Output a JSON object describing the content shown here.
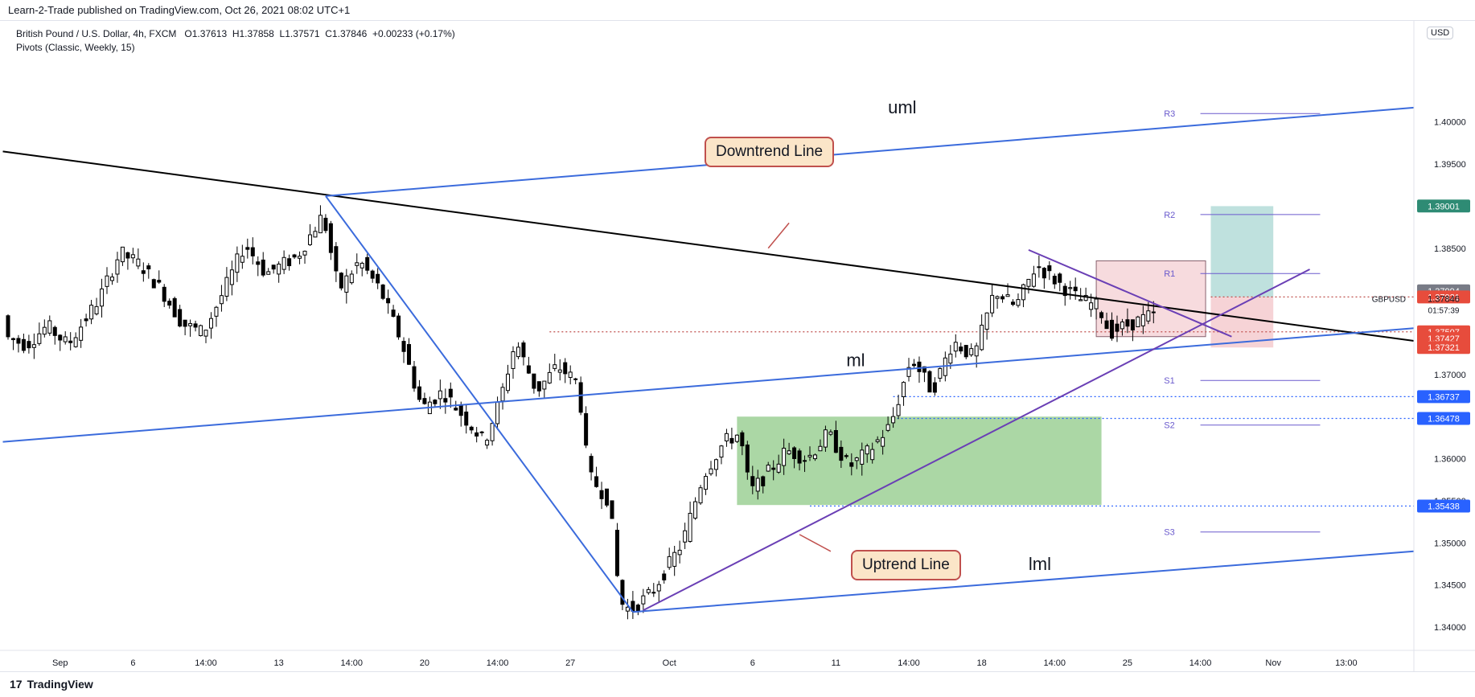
{
  "header": {
    "publisher": "Learn-2-Trade published on TradingView.com, Oct 26, 2021 08:02 UTC+1"
  },
  "legend": {
    "symbol": "British Pound / U.S. Dollar, 4h, FXCM",
    "open": "O1.37613",
    "high": "H1.37858",
    "low": "L1.37571",
    "close": "C1.37846",
    "change": "+0.00233 (+0.17%)",
    "indicator": "Pivots (Classic, Weekly, 15)"
  },
  "currency_button": "USD",
  "brand": {
    "logo": "17",
    "name": "TradingView"
  },
  "chart_data": {
    "type": "candlestick",
    "symbol": "GBPUSD",
    "timeframe": "4h",
    "ylim": [
      1.338,
      1.412
    ],
    "y_ticks": [
      "1.40000",
      "1.39500",
      "1.39000",
      "1.38500",
      "1.38000",
      "1.37500",
      "1.37000",
      "1.36500",
      "1.36000",
      "1.35500",
      "1.35000",
      "1.34500",
      "1.34000"
    ],
    "y_tick_values": [
      1.4,
      1.395,
      1.39,
      1.385,
      1.38,
      1.375,
      1.37,
      1.365,
      1.36,
      1.355,
      1.35,
      1.345,
      1.34
    ],
    "x_ticks": [
      {
        "label": "Sep",
        "bar": 10
      },
      {
        "label": "6",
        "bar": 24
      },
      {
        "label": "14:00",
        "bar": 38
      },
      {
        "label": "13",
        "bar": 52
      },
      {
        "label": "14:00",
        "bar": 66
      },
      {
        "label": "20",
        "bar": 80
      },
      {
        "label": "14:00",
        "bar": 94
      },
      {
        "label": "27",
        "bar": 108
      },
      {
        "label": "Oct",
        "bar": 127
      },
      {
        "label": "6",
        "bar": 143
      },
      {
        "label": "11",
        "bar": 159
      },
      {
        "label": "14:00",
        "bar": 173
      },
      {
        "label": "18",
        "bar": 187
      },
      {
        "label": "14:00",
        "bar": 201
      },
      {
        "label": "25",
        "bar": 215
      },
      {
        "label": "14:00",
        "bar": 229
      },
      {
        "label": "Nov",
        "bar": 243
      },
      {
        "label": "13:00",
        "bar": 257
      }
    ],
    "xlim": [
      0,
      270
    ],
    "waypoints": [
      [
        0,
        1.3745
      ],
      [
        4,
        1.3735
      ],
      [
        8,
        1.3758
      ],
      [
        12,
        1.3735
      ],
      [
        18,
        1.379
      ],
      [
        22,
        1.3845
      ],
      [
        26,
        1.383
      ],
      [
        30,
        1.38
      ],
      [
        34,
        1.376
      ],
      [
        38,
        1.375
      ],
      [
        42,
        1.38
      ],
      [
        46,
        1.3855
      ],
      [
        50,
        1.382
      ],
      [
        56,
        1.384
      ],
      [
        61,
        1.389
      ],
      [
        64,
        1.38
      ],
      [
        68,
        1.3835
      ],
      [
        72,
        1.38
      ],
      [
        76,
        1.374
      ],
      [
        80,
        1.366
      ],
      [
        84,
        1.368
      ],
      [
        88,
        1.365
      ],
      [
        92,
        1.362
      ],
      [
        95,
        1.367
      ],
      [
        98,
        1.374
      ],
      [
        102,
        1.368
      ],
      [
        106,
        1.371
      ],
      [
        110,
        1.369
      ],
      [
        112,
        1.358
      ],
      [
        116,
        1.355
      ],
      [
        118,
        1.343
      ],
      [
        120,
        1.342
      ],
      [
        124,
        1.344
      ],
      [
        128,
        1.348
      ],
      [
        130,
        1.35
      ],
      [
        134,
        1.358
      ],
      [
        138,
        1.362
      ],
      [
        141,
        1.363
      ],
      [
        143,
        1.356
      ],
      [
        146,
        1.358
      ],
      [
        150,
        1.361
      ],
      [
        154,
        1.36
      ],
      [
        158,
        1.363
      ],
      [
        162,
        1.359
      ],
      [
        166,
        1.361
      ],
      [
        170,
        1.364
      ],
      [
        174,
        1.372
      ],
      [
        178,
        1.368
      ],
      [
        182,
        1.374
      ],
      [
        186,
        1.372
      ],
      [
        190,
        1.38
      ],
      [
        194,
        1.378
      ],
      [
        198,
        1.383
      ],
      [
        202,
        1.381
      ],
      [
        206,
        1.379
      ],
      [
        210,
        1.378
      ],
      [
        212,
        1.375
      ],
      [
        216,
        1.376
      ],
      [
        220,
        1.377
      ]
    ],
    "price_labels": [
      {
        "price": 1.39001,
        "text": "1.39001",
        "color": "#2e8b74"
      },
      {
        "price": 1.37994,
        "text": "1.37994",
        "color": "#787b86"
      },
      {
        "price": 1.37921,
        "text": "1.37921",
        "color": "#e74c3c"
      },
      {
        "price": 1.37507,
        "text": "1.37507",
        "color": "#e74c3c"
      },
      {
        "price": 1.37427,
        "text": "1.37427",
        "color": "#e74c3c"
      },
      {
        "price": 1.37321,
        "text": "1.37321",
        "color": "#e74c3c"
      },
      {
        "price": 1.36737,
        "text": "1.36737",
        "color": "#2962ff"
      },
      {
        "price": 1.36478,
        "text": "1.36478",
        "color": "#2962ff"
      },
      {
        "price": 1.35438,
        "text": "1.35438",
        "color": "#2962ff"
      }
    ],
    "current": {
      "symbol": "GBPUSD",
      "price": "1.37846",
      "countdown": "01:57:39",
      "value": 1.37846
    },
    "pivots": [
      {
        "name": "R3",
        "value": 1.401
      },
      {
        "name": "R2",
        "value": 1.389
      },
      {
        "name": "R1",
        "value": 1.382
      },
      {
        "name": "S1",
        "value": 1.3693
      },
      {
        "name": "S2",
        "value": 1.364
      },
      {
        "name": "S3",
        "value": 1.3513
      }
    ],
    "dotted_levels": [
      1.37507,
      1.36737,
      1.36478,
      1.35438
    ],
    "pitchfork": {
      "upper_label": "uml",
      "median_label": "ml",
      "lower_label": "lml"
    },
    "annotations": {
      "downtrend": "Downtrend Line",
      "uptrend": "Uptrend Line"
    },
    "colors": {
      "bull_body": "#ffffff",
      "bear_body": "#000000",
      "wick": "#000000",
      "pitchfork": "#3b6bdc",
      "uptrend": "#6a3fb5",
      "downtrend": "#000000",
      "demand_zone": "#a7d5a0",
      "target_zone": "#bfe1de",
      "stop_zone": "#f6d3d6",
      "annotation_bg": "#fbe5c8",
      "annotation_border": "#c0504d"
    }
  }
}
